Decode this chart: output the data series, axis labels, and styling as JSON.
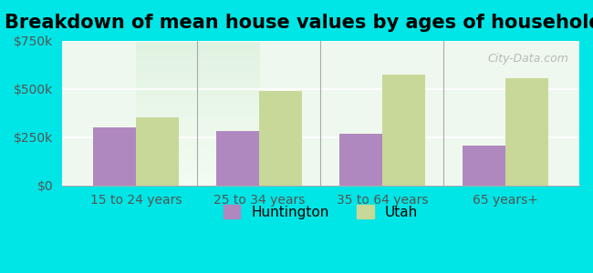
{
  "title": "Breakdown of mean house values by ages of householders",
  "categories": [
    "15 to 24 years",
    "25 to 34 years",
    "35 to 64 years",
    "65 years+"
  ],
  "huntington_values": [
    300000,
    280000,
    268000,
    205000
  ],
  "utah_values": [
    355000,
    490000,
    575000,
    555000
  ],
  "huntington_color": "#b088c0",
  "utah_color": "#c8d898",
  "background_color": "#00e5e5",
  "plot_bg_gradient_top": "#e8f5e8",
  "plot_bg_gradient_bottom": "#f0fff0",
  "ylim": [
    0,
    750000
  ],
  "yticks": [
    0,
    250000,
    500000,
    750000
  ],
  "ytick_labels": [
    "$0",
    "$250k",
    "$500k",
    "$750k"
  ],
  "legend_huntington": "Huntington",
  "legend_utah": "Utah",
  "title_fontsize": 15,
  "tick_fontsize": 10,
  "legend_fontsize": 11
}
